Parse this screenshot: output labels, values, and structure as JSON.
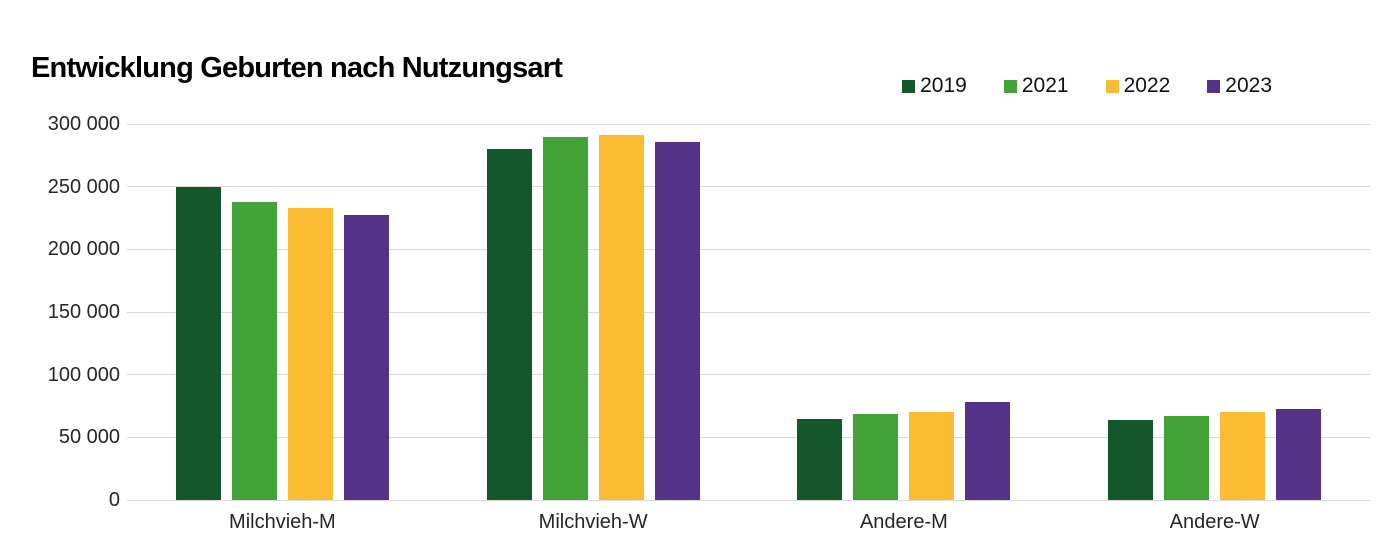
{
  "title": "Entwicklung Geburten nach Nutzungsart",
  "legend": {
    "items": [
      {
        "label": "2019",
        "color": "#14572d"
      },
      {
        "label": "2021",
        "color": "#43a338"
      },
      {
        "label": "2022",
        "color": "#fbbc33"
      },
      {
        "label": "2023",
        "color": "#543287"
      }
    ]
  },
  "chart_data": {
    "type": "bar",
    "title": "Entwicklung Geburten nach Nutzungsart",
    "categories": [
      "Milchvieh-M",
      "Milchvieh-W",
      "Andere-M",
      "Andere-W"
    ],
    "series": [
      {
        "name": "2019",
        "color": "#14572d",
        "values": [
          250000,
          280000,
          65000,
          64000
        ]
      },
      {
        "name": "2021",
        "color": "#43a338",
        "values": [
          238000,
          290000,
          69000,
          67000
        ]
      },
      {
        "name": "2022",
        "color": "#fbbc33",
        "values": [
          233000,
          291000,
          70000,
          70000
        ]
      },
      {
        "name": "2023",
        "color": "#543287",
        "values": [
          227000,
          286000,
          78000,
          73000
        ]
      }
    ],
    "ylim": [
      0,
      300000
    ],
    "ytick_step": 50000,
    "ytick_labels": [
      "0",
      "50 000",
      "100 000",
      "150 000",
      "200 000",
      "250 000",
      "300 000"
    ],
    "grid": true,
    "legend_position": "top-right",
    "xlabel": "",
    "ylabel": ""
  }
}
